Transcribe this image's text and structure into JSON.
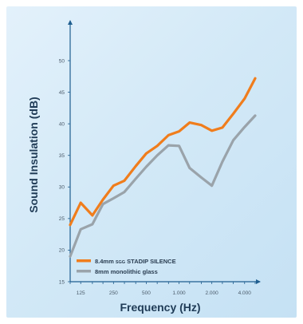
{
  "chart_data": {
    "type": "line",
    "title": "",
    "xlabel": "Frequency (Hz)",
    "ylabel": "Sound Insulation (dB)",
    "ylim": [
      15,
      50
    ],
    "yticks": [
      "15",
      "20",
      "25",
      "30",
      "35",
      "40",
      "45",
      "50"
    ],
    "xscale": "log",
    "xlim": [
      100,
      5000
    ],
    "xticks": [
      {
        "label": "125",
        "value": 125
      },
      {
        "label": "250",
        "value": 250
      },
      {
        "label": "500",
        "value": 500
      },
      {
        "label": "1.000",
        "value": 1000
      },
      {
        "label": "2.000",
        "value": 2000
      },
      {
        "label": "4.000",
        "value": 4000
      }
    ],
    "grid": false,
    "legend": "bottom-left",
    "x": [
      100,
      125,
      160,
      200,
      250,
      315,
      400,
      500,
      630,
      800,
      1000,
      1250,
      1600,
      2000,
      2500,
      3150,
      4000,
      5000
    ],
    "series": [
      {
        "name": "8.4mm SGG STADIP SILENCE",
        "legend_parts": [
          "8.4mm ",
          "SGG",
          " STADIP SILENCE"
        ],
        "color": "#f07d1c",
        "values": [
          24.0,
          27.5,
          25.5,
          28.0,
          30.2,
          31.0,
          33.3,
          35.3,
          36.5,
          38.2,
          38.8,
          40.2,
          39.8,
          38.9,
          39.4,
          41.6,
          44.0,
          47.2
        ]
      },
      {
        "name": "8mm monolithic glass",
        "color": "#9aa3aa",
        "values": [
          19.0,
          23.3,
          24.1,
          27.3,
          28.2,
          29.2,
          31.3,
          33.2,
          35.0,
          36.6,
          36.5,
          33.0,
          31.5,
          30.2,
          34.0,
          37.4,
          39.5,
          41.3
        ]
      }
    ]
  }
}
